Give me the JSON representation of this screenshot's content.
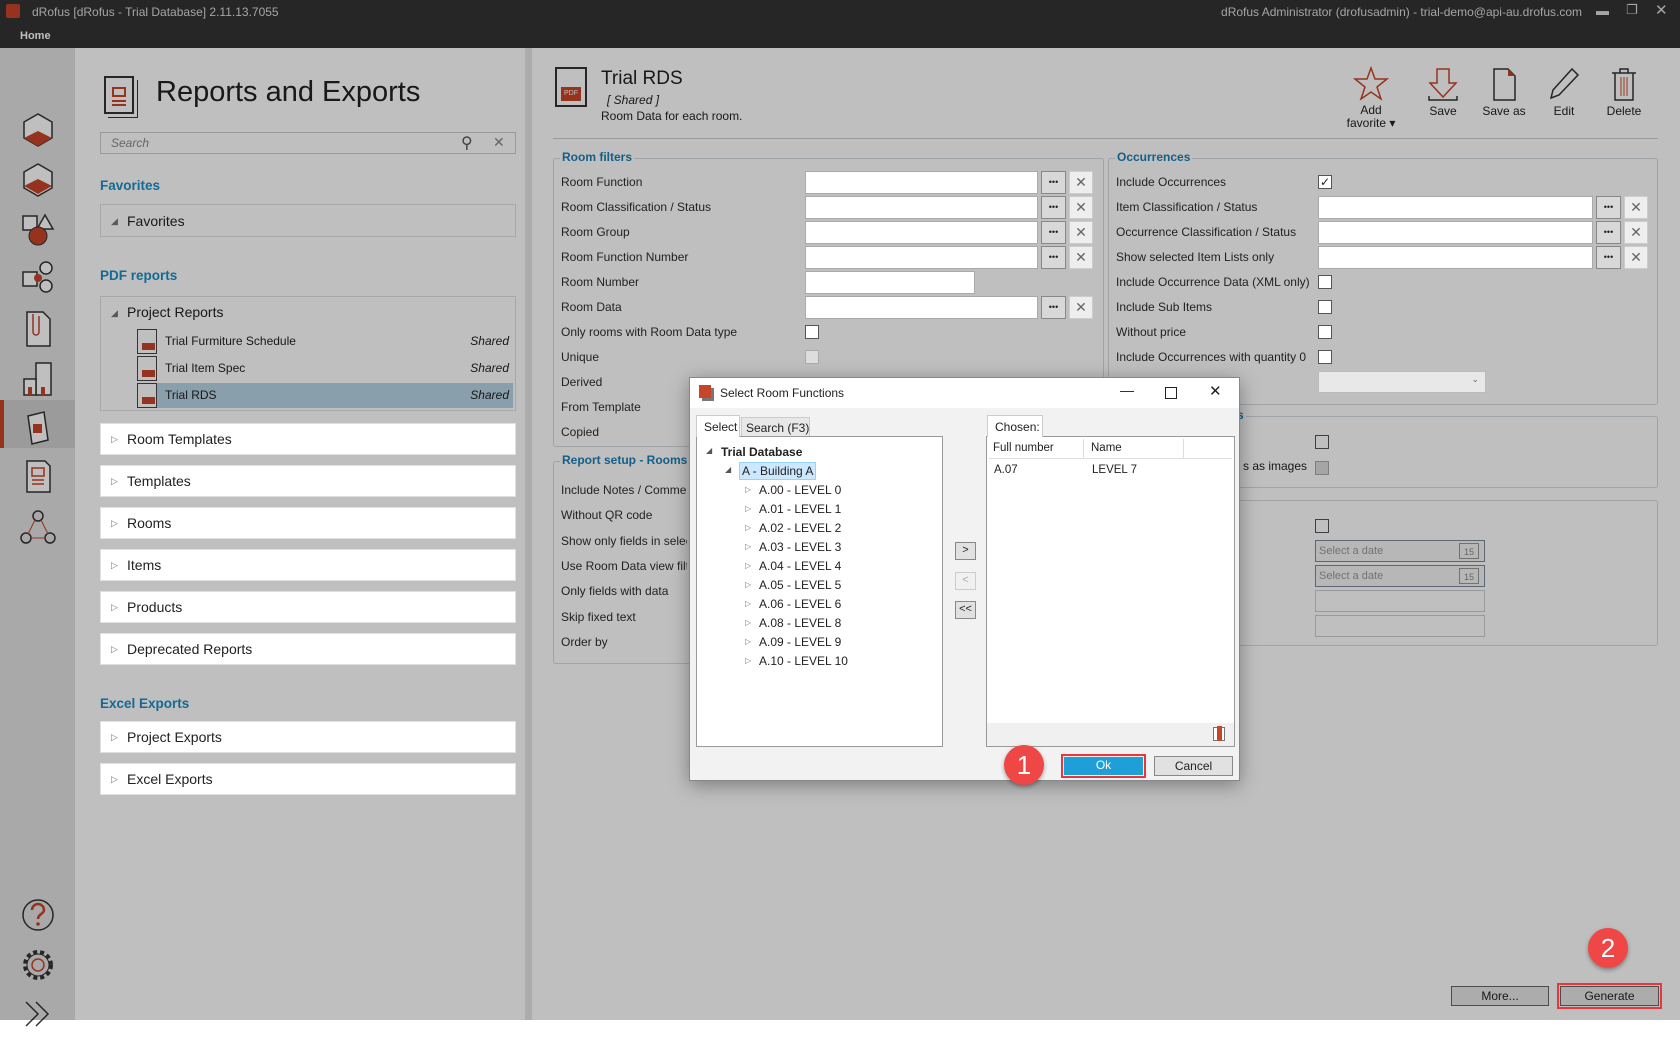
{
  "window": {
    "title": "dRofus [dRofus - Trial Database] 2.11.13.7055",
    "user": "dRofus Administrator (drofusadmin) - trial-demo@api-au.drofus.com",
    "menu": "Home"
  },
  "rail": {
    "items": [
      "rooms-icon",
      "room-templates-icon",
      "items-icon",
      "item-groups-icon",
      "documents-icon",
      "buildings-icon",
      "products-icon",
      "reports-icon",
      "network-icon"
    ],
    "active": "reports-icon",
    "bottom": [
      "help-icon",
      "settings-icon",
      "expand-icon"
    ]
  },
  "left": {
    "title": "Reports and Exports",
    "search_placeholder": "Search",
    "favorites_heading": "Favorites",
    "favorites_group": "Favorites",
    "pdf_heading": "PDF reports",
    "project_reports": "Project Reports",
    "reports": [
      {
        "name": "Trial Furmiture Schedule",
        "shared": "Shared"
      },
      {
        "name": "Trial Item Spec",
        "shared": "Shared"
      },
      {
        "name": "Trial RDS",
        "shared": "Shared",
        "selected": true
      }
    ],
    "pdf_groups": [
      "Room Templates",
      "Templates",
      "Rooms",
      "Items",
      "Products",
      "Deprecated Reports"
    ],
    "excel_heading": "Excel Exports",
    "excel_groups": [
      "Project Exports",
      "Excel Exports"
    ]
  },
  "report": {
    "title": "Trial RDS",
    "shared": "[ Shared ]",
    "description": "Room Data for each room."
  },
  "toolbar": {
    "add_favorite": "Add favorite ▾",
    "save": "Save",
    "save_as": "Save as",
    "edit": "Edit",
    "delete": "Delete"
  },
  "room_filters": {
    "title": "Room filters",
    "fields": [
      {
        "label": "Room Function",
        "type": "picker"
      },
      {
        "label": "Room Classification / Status",
        "type": "picker"
      },
      {
        "label": "Room Group",
        "type": "picker"
      },
      {
        "label": "Room Function Number",
        "type": "picker"
      },
      {
        "label": "Room Number",
        "type": "text"
      },
      {
        "label": "Room Data",
        "type": "picker"
      },
      {
        "label": "Only rooms with Room Data type",
        "type": "checkbox",
        "checked": false
      },
      {
        "label": "Unique",
        "type": "checkbox-disabled"
      },
      {
        "label": "Derived",
        "type": "none"
      },
      {
        "label": "From Template",
        "type": "none"
      },
      {
        "label": "Copied",
        "type": "none"
      }
    ]
  },
  "report_setup": {
    "title": "Report setup - Rooms",
    "fields": [
      "Include Notes / Commer",
      "Without QR code",
      "Show only fields in selec",
      "Use Room Data view filte",
      "Only fields with data",
      "Skip fixed text",
      "Order by"
    ]
  },
  "occurrences": {
    "title": "Occurrences",
    "fields": [
      {
        "label": "Include Occurrences",
        "type": "checkbox",
        "checked": true
      },
      {
        "label": "Item Classification / Status",
        "type": "picker"
      },
      {
        "label": "Occurrence Classification / Status",
        "type": "picker"
      },
      {
        "label": "Show selected Item Lists only",
        "type": "picker"
      },
      {
        "label": "Include Occurrence Data (XML only)",
        "type": "checkbox",
        "checked": false
      },
      {
        "label": "Include Sub Items",
        "type": "checkbox",
        "checked": false
      },
      {
        "label": "Without price",
        "type": "checkbox",
        "checked": false
      },
      {
        "label": "Include Occurrences with quantity 0",
        "type": "checkbox",
        "checked": false
      },
      {
        "label": "",
        "type": "dropdown"
      }
    ]
  },
  "group3": {
    "title_fragment": "s",
    "label_fragment": "s as images"
  },
  "group4": {
    "date_placeholder": "Select a date",
    "calendar_day": "15"
  },
  "dialog": {
    "title": "Select Room Functions",
    "tabs": [
      "Select",
      "Search (F3)"
    ],
    "active_tab": "Select",
    "tree_root": "Trial Database",
    "building": "A - Building A",
    "levels": [
      "A.00 - LEVEL 0",
      "A.01 - LEVEL 1",
      "A.02 - LEVEL 2",
      "A.03 - LEVEL 3",
      "A.04 - LEVEL 4",
      "A.05 - LEVEL 5",
      "A.06 - LEVEL 6",
      "A.08 - LEVEL 8",
      "A.09 - LEVEL 9",
      "A.10 - LEVEL 10"
    ],
    "add": ">",
    "remove": "<",
    "remove_all": "<<",
    "chosen_tab": "Chosen:",
    "columns": [
      "Full number",
      "Name"
    ],
    "rows": [
      {
        "number": "A.07",
        "name": "LEVEL 7"
      }
    ],
    "ok": "Ok",
    "cancel": "Cancel"
  },
  "footer": {
    "more": "More...",
    "generate": "Generate"
  },
  "annotations": {
    "step1": "1",
    "step2": "2"
  },
  "colors": {
    "accent": "#1a8fc7",
    "brand": "#c8452a",
    "selection": "#b8d4e6",
    "highlight": "#e8363a",
    "ok_button": "#1e9fd8"
  }
}
